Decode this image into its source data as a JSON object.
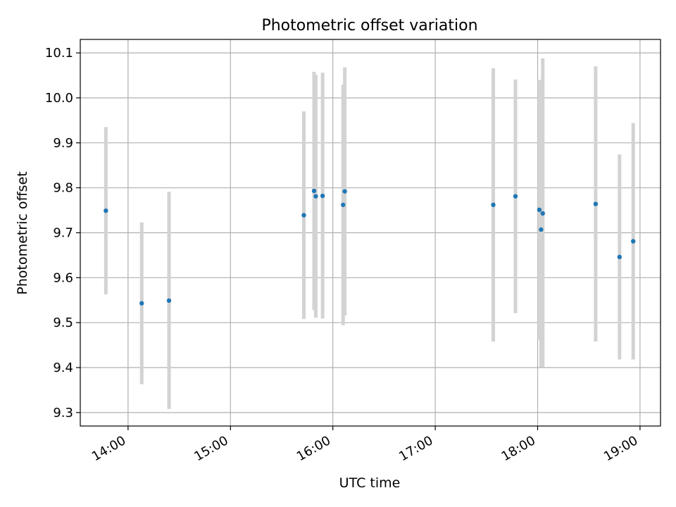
{
  "chart_data": {
    "type": "scatter",
    "title": "Photometric offset variation",
    "xlabel": "UTC time",
    "ylabel": "Photometric offset",
    "x_tick_labels": [
      "14:00",
      "15:00",
      "16:00",
      "17:00",
      "18:00",
      "19:00"
    ],
    "y_tick_labels": [
      "9.3",
      "9.4",
      "9.5",
      "9.6",
      "9.7",
      "9.8",
      "9.9",
      "10.0",
      "10.1"
    ],
    "xlim": [
      "13:32",
      "19:12"
    ],
    "ylim": [
      9.27,
      10.13
    ],
    "grid": true,
    "series": [
      {
        "marker_color": "#1f77b4",
        "errorbar_color": "#d3d3d3",
        "points": [
          {
            "time": "13:47",
            "y": 9.749,
            "lo": 9.563,
            "hi": 9.935
          },
          {
            "time": "14:08",
            "y": 9.543,
            "lo": 9.363,
            "hi": 9.723
          },
          {
            "time": "14:24",
            "y": 9.549,
            "lo": 9.308,
            "hi": 9.791
          },
          {
            "time": "15:43",
            "y": 9.739,
            "lo": 9.508,
            "hi": 9.97
          },
          {
            "time": "15:49",
            "y": 9.793,
            "lo": 9.528,
            "hi": 10.058
          },
          {
            "time": "15:50",
            "y": 9.781,
            "lo": 9.511,
            "hi": 10.051
          },
          {
            "time": "15:54",
            "y": 9.782,
            "lo": 9.509,
            "hi": 10.056
          },
          {
            "time": "16:06",
            "y": 9.762,
            "lo": 9.494,
            "hi": 10.029
          },
          {
            "time": "16:07",
            "y": 9.792,
            "lo": 9.516,
            "hi": 10.068
          },
          {
            "time": "17:34",
            "y": 9.762,
            "lo": 9.458,
            "hi": 10.066
          },
          {
            "time": "17:47",
            "y": 9.781,
            "lo": 9.521,
            "hi": 10.041
          },
          {
            "time": "18:01",
            "y": 9.751,
            "lo": 9.462,
            "hi": 10.04
          },
          {
            "time": "18:02",
            "y": 9.707,
            "lo": 9.401,
            "hi": 10.013
          },
          {
            "time": "18:03",
            "y": 9.743,
            "lo": 9.401,
            "hi": 10.088
          },
          {
            "time": "18:34",
            "y": 9.764,
            "lo": 9.458,
            "hi": 10.07
          },
          {
            "time": "18:48",
            "y": 9.646,
            "lo": 9.418,
            "hi": 9.874
          },
          {
            "time": "18:56",
            "y": 9.681,
            "lo": 9.418,
            "hi": 9.944
          }
        ]
      }
    ]
  }
}
